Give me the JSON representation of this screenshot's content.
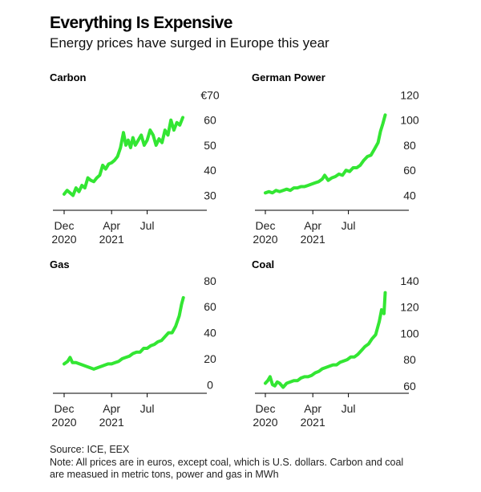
{
  "title": "Everything Is Expensive",
  "subtitle": "Energy prices have surged in Europe this year",
  "footer": {
    "source": "Source: ICE, EEX",
    "note_line1": "Note: All prices are in euros, except coal, which is U.S. dollars. Carbon and coal",
    "note_line2": "are measued in metric tons, power and gas in MWh"
  },
  "colors": {
    "line": "#33e633",
    "axis": "#000000",
    "text": "#222222"
  },
  "chart_data": [
    {
      "type": "line",
      "title": "Carbon",
      "x_ticks": [
        {
          "month": 0,
          "label1": "Dec",
          "label2": "2020"
        },
        {
          "month": 4,
          "label1": "Apr",
          "label2": "2021"
        },
        {
          "month": 7,
          "label1": "Jul",
          "label2": ""
        }
      ],
      "y_ticks": [
        {
          "value": 30,
          "label": "30"
        },
        {
          "value": 40,
          "label": "40"
        },
        {
          "value": 50,
          "label": "50"
        },
        {
          "value": 60,
          "label": "60"
        },
        {
          "value": 70,
          "label": "€70"
        }
      ],
      "ylim": [
        26,
        72
      ],
      "xlim": [
        0,
        12.5
      ],
      "series": [
        {
          "name": "Carbon",
          "x": [
            0,
            0.25,
            0.5,
            0.75,
            1,
            1.25,
            1.5,
            1.75,
            2,
            2.25,
            2.5,
            2.75,
            3,
            3.25,
            3.5,
            3.75,
            4,
            4.25,
            4.5,
            4.75,
            5,
            5.2,
            5.4,
            5.6,
            5.8,
            6,
            6.25,
            6.5,
            6.75,
            7,
            7.25,
            7.5,
            7.75,
            8,
            8.25,
            8.5,
            8.75,
            9,
            9.25,
            9.5,
            9.75,
            10
          ],
          "values": [
            30.5,
            32,
            31,
            30,
            33,
            31.5,
            34,
            33,
            37,
            36,
            35.5,
            37,
            38,
            42,
            40.5,
            42.5,
            43,
            44,
            45.5,
            49,
            55,
            50,
            52,
            49,
            53,
            50,
            52,
            54,
            50,
            52,
            56,
            54,
            50,
            52.5,
            51,
            56,
            54,
            60,
            56,
            59,
            58,
            61
          ]
        }
      ]
    },
    {
      "type": "line",
      "title": "German Power",
      "x_ticks": [
        {
          "month": 0,
          "label1": "Dec",
          "label2": "2020"
        },
        {
          "month": 4,
          "label1": "Apr",
          "label2": "2021"
        },
        {
          "month": 7,
          "label1": "Jul",
          "label2": ""
        }
      ],
      "y_ticks": [
        {
          "value": 40,
          "label": "40"
        },
        {
          "value": 60,
          "label": "60"
        },
        {
          "value": 80,
          "label": "80"
        },
        {
          "value": 100,
          "label": "100"
        },
        {
          "value": 120,
          "label": "120"
        }
      ],
      "ylim": [
        32,
        124
      ],
      "xlim": [
        0,
        12.5
      ],
      "series": [
        {
          "name": "German Power",
          "x": [
            0,
            0.3,
            0.6,
            0.9,
            1.2,
            1.5,
            1.8,
            2.1,
            2.4,
            2.7,
            3,
            3.3,
            3.6,
            3.9,
            4.2,
            4.5,
            4.8,
            5,
            5.3,
            5.6,
            5.9,
            6.2,
            6.5,
            6.8,
            7.1,
            7.4,
            7.7,
            8,
            8.3,
            8.6,
            8.9,
            9.2,
            9.5,
            9.7,
            9.9,
            10.1
          ],
          "values": [
            42,
            43,
            42,
            44,
            43,
            44,
            45,
            44,
            46,
            46,
            47,
            47,
            48,
            49,
            50,
            51,
            53,
            56,
            52,
            54,
            55,
            57,
            56,
            60,
            59,
            62,
            62,
            64,
            68,
            71,
            72,
            77,
            82,
            91,
            97,
            104
          ]
        }
      ]
    },
    {
      "type": "line",
      "title": "Gas",
      "x_ticks": [
        {
          "month": 0,
          "label1": "Dec",
          "label2": "2020"
        },
        {
          "month": 4,
          "label1": "Apr",
          "label2": "2021"
        },
        {
          "month": 7,
          "label1": "Jul",
          "label2": ""
        }
      ],
      "y_ticks": [
        {
          "value": 0,
          "label": "0"
        },
        {
          "value": 20,
          "label": "20"
        },
        {
          "value": 40,
          "label": "40"
        },
        {
          "value": 60,
          "label": "60"
        },
        {
          "value": 80,
          "label": "80"
        }
      ],
      "ylim": [
        -6,
        83
      ],
      "xlim": [
        0,
        12.5
      ],
      "series": [
        {
          "name": "Gas",
          "x": [
            0,
            0.3,
            0.5,
            0.7,
            1,
            1.3,
            1.6,
            1.9,
            2.2,
            2.5,
            2.8,
            3.1,
            3.4,
            3.7,
            4,
            4.3,
            4.6,
            4.9,
            5.2,
            5.5,
            5.8,
            6.1,
            6.4,
            6.7,
            7,
            7.3,
            7.6,
            7.9,
            8.2,
            8.5,
            8.8,
            9.1,
            9.4,
            9.7,
            9.9,
            10.05
          ],
          "values": [
            16,
            18,
            21,
            17,
            17,
            16,
            15,
            14,
            13,
            12,
            13,
            14,
            15,
            16,
            16,
            17,
            18,
            20,
            21,
            22,
            24,
            25,
            25,
            28,
            28,
            30,
            31,
            33,
            34,
            37,
            40,
            40,
            45,
            53,
            62,
            67
          ]
        }
      ]
    },
    {
      "type": "line",
      "title": "Coal",
      "x_ticks": [
        {
          "month": 0,
          "label1": "Dec",
          "label2": "2020"
        },
        {
          "month": 4,
          "label1": "Apr",
          "label2": "2021"
        },
        {
          "month": 7,
          "label1": "Jul",
          "label2": ""
        }
      ],
      "y_ticks": [
        {
          "value": 60,
          "label": "60"
        },
        {
          "value": 80,
          "label": "80"
        },
        {
          "value": 100,
          "label": "100"
        },
        {
          "value": 120,
          "label": "120"
        },
        {
          "value": 140,
          "label": "140"
        }
      ],
      "ylim": [
        55,
        143
      ],
      "xlim": [
        0,
        12.5
      ],
      "series": [
        {
          "name": "Coal",
          "x": [
            0,
            0.2,
            0.4,
            0.6,
            0.8,
            1,
            1.2,
            1.5,
            1.8,
            2.1,
            2.4,
            2.7,
            3,
            3.3,
            3.6,
            3.9,
            4.2,
            4.5,
            4.8,
            5.1,
            5.4,
            5.7,
            6,
            6.3,
            6.6,
            6.9,
            7.2,
            7.5,
            7.8,
            8.1,
            8.4,
            8.7,
            9,
            9.3,
            9.6,
            9.8,
            10,
            10.1
          ],
          "values": [
            62,
            64,
            67,
            61,
            60,
            63,
            62,
            59,
            62,
            63,
            64,
            64,
            66,
            67,
            67,
            68,
            70,
            71,
            73,
            74,
            75,
            76,
            76,
            78,
            79,
            80,
            82,
            82,
            84,
            87,
            90,
            92,
            96,
            99,
            109,
            118,
            115,
            131
          ]
        }
      ]
    }
  ]
}
